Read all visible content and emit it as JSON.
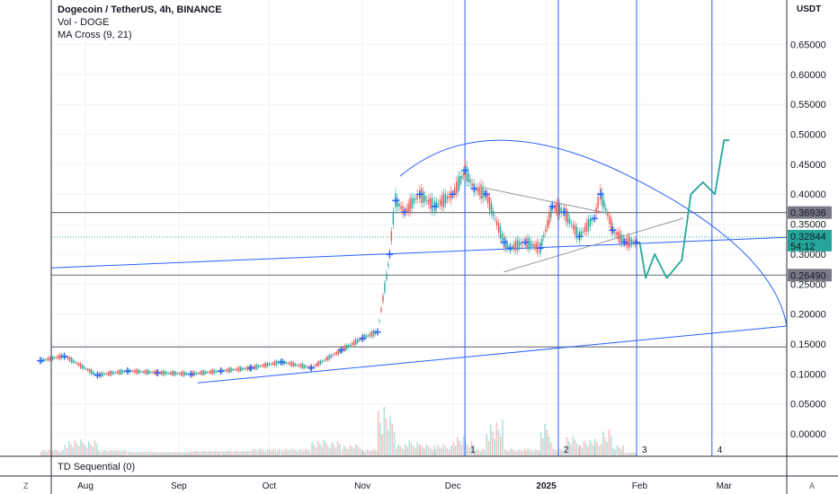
{
  "header": {
    "title": "Dogecoin / TetherUS, 4h, BINANCE",
    "volume_label": "Vol - DOGE",
    "indicator_label": "MA Cross (9, 21)",
    "currency": "USDT"
  },
  "sub_pane": {
    "label": "TD Sequential (0)"
  },
  "corner": {
    "left": "Z",
    "right": "A"
  },
  "colors": {
    "bull": "#26a69a",
    "bear": "#ef5350",
    "line_blue": "#2962ff",
    "projection": "#26a69a",
    "marker": "#2962ff",
    "level_gray": "#787b86",
    "current_price_bg": "#26a69a"
  },
  "chart_data": {
    "type": "line",
    "title": "Dogecoin / TetherUS, 4h, BINANCE",
    "y_ticks": [
      "0.65000",
      "0.60000",
      "0.55000",
      "0.50000",
      "0.45000",
      "0.40000",
      "0.35000",
      "0.30000",
      "0.25000",
      "0.20000",
      "0.15000",
      "0.10000",
      "0.05000",
      "0.00000"
    ],
    "ylim": [
      -0.03,
      0.7
    ],
    "x_ticks": [
      "Aug",
      "Sep",
      "Oct",
      "Nov",
      "Dec",
      "2025",
      "Feb",
      "Mar"
    ],
    "price_path": {
      "x": [
        "Jul 17",
        "Jul 25",
        "Aug 5",
        "Aug 15",
        "Aug 25",
        "Sep 5",
        "Sep 15",
        "Sep 25",
        "Oct 5",
        "Oct 15",
        "Oct 25",
        "Nov 1",
        "Nov 6",
        "Nov 10",
        "Nov 12",
        "Nov 15",
        "Nov 20",
        "Nov 25",
        "Dec 1",
        "Dec 5",
        "Dec 8",
        "Dec 12",
        "Dec 18",
        "Dec 20",
        "Dec 25",
        "Dec 30",
        "Jan 3",
        "Jan 7",
        "Jan 12",
        "Jan 17",
        "Jan 19",
        "Jan 23",
        "Jan 27",
        "Jan 31"
      ],
      "y": [
        0.122,
        0.13,
        0.098,
        0.105,
        0.102,
        0.1,
        0.105,
        0.11,
        0.12,
        0.11,
        0.14,
        0.16,
        0.17,
        0.3,
        0.39,
        0.37,
        0.4,
        0.38,
        0.4,
        0.44,
        0.41,
        0.4,
        0.32,
        0.31,
        0.32,
        0.31,
        0.38,
        0.37,
        0.33,
        0.36,
        0.4,
        0.34,
        0.32,
        0.32
      ]
    },
    "projection_path": {
      "x": [
        "Feb 1",
        "Feb 3",
        "Feb 6",
        "Feb 10",
        "Feb 15",
        "Feb 18",
        "Feb 22",
        "Feb 26",
        "Mar 1",
        "Mar 1"
      ],
      "y": [
        0.32,
        0.26,
        0.3,
        0.26,
        0.29,
        0.4,
        0.42,
        0.4,
        0.49,
        0.49
      ]
    },
    "horizontal_levels": [
      {
        "label": "0.36936",
        "value": 0.36936
      },
      {
        "label": "0.26490",
        "value": 0.2649
      },
      {
        "value": 0.145
      }
    ],
    "current_price": {
      "value": "0.32844",
      "countdown": "54:12"
    },
    "vertical_markers": [
      {
        "label": "1",
        "date": "Dec 5"
      },
      {
        "label": "2",
        "date": "Jan 5"
      },
      {
        "label": "3",
        "date": "Jan 31"
      },
      {
        "label": "4",
        "date": "Feb 25"
      }
    ],
    "grid": true
  }
}
